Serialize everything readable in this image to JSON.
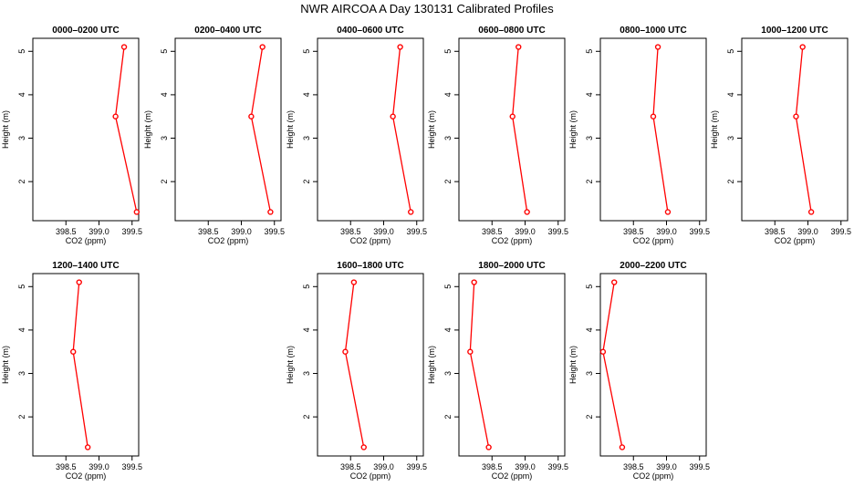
{
  "figure": {
    "title": "NWR AIRCOA A  Day 130131  Calibrated Profiles"
  },
  "colors": {
    "series": "#ff0000",
    "axes": "#000000",
    "background": "#ffffff"
  },
  "chart_data": [
    {
      "type": "line",
      "title": "0000–0200 UTC",
      "xlabel": "CO2 (ppm)",
      "ylabel": "Height (m)",
      "xlim": [
        398.0,
        399.6
      ],
      "ylim": [
        1.1,
        5.3
      ],
      "xticks": [
        "398.5",
        "399.0",
        "399.5"
      ],
      "yticks": [
        "2",
        "3",
        "4",
        "5"
      ],
      "x": [
        399.38,
        399.25,
        399.57
      ],
      "y": [
        5.1,
        3.5,
        1.3
      ]
    },
    {
      "type": "line",
      "title": "0200–0400 UTC",
      "xlabel": "CO2 (ppm)",
      "ylabel": "Height (m)",
      "xlim": [
        398.0,
        399.6
      ],
      "ylim": [
        1.1,
        5.3
      ],
      "xticks": [
        "398.5",
        "399.0",
        "399.5"
      ],
      "yticks": [
        "2",
        "3",
        "4",
        "5"
      ],
      "x": [
        399.32,
        399.15,
        399.44
      ],
      "y": [
        5.1,
        3.5,
        1.3
      ]
    },
    {
      "type": "line",
      "title": "0400–0600 UTC",
      "xlabel": "CO2 (ppm)",
      "ylabel": "Height (m)",
      "xlim": [
        398.0,
        399.6
      ],
      "ylim": [
        1.1,
        5.3
      ],
      "xticks": [
        "398.5",
        "399.0",
        "399.5"
      ],
      "yticks": [
        "2",
        "3",
        "4",
        "5"
      ],
      "x": [
        399.25,
        399.14,
        399.41
      ],
      "y": [
        5.1,
        3.5,
        1.3
      ]
    },
    {
      "type": "line",
      "title": "0600–0800 UTC",
      "xlabel": "CO2 (ppm)",
      "ylabel": "Height (m)",
      "xlim": [
        398.0,
        399.6
      ],
      "ylim": [
        1.1,
        5.3
      ],
      "xticks": [
        "398.5",
        "399.0",
        "399.5"
      ],
      "yticks": [
        "2",
        "3",
        "4",
        "5"
      ],
      "x": [
        398.9,
        398.81,
        399.03
      ],
      "y": [
        5.1,
        3.5,
        1.3
      ]
    },
    {
      "type": "line",
      "title": "0800–1000 UTC",
      "xlabel": "CO2 (ppm)",
      "ylabel": "Height (m)",
      "xlim": [
        398.0,
        399.6
      ],
      "ylim": [
        1.1,
        5.3
      ],
      "xticks": [
        "398.5",
        "399.0",
        "399.5"
      ],
      "yticks": [
        "2",
        "3",
        "4",
        "5"
      ],
      "x": [
        398.87,
        398.8,
        399.02
      ],
      "y": [
        5.1,
        3.5,
        1.3
      ]
    },
    {
      "type": "line",
      "title": "1000–1200 UTC",
      "xlabel": "CO2 (ppm)",
      "ylabel": "Height (m)",
      "xlim": [
        398.0,
        399.6
      ],
      "ylim": [
        1.1,
        5.3
      ],
      "xticks": [
        "398.5",
        "399.0",
        "399.5"
      ],
      "yticks": [
        "2",
        "3",
        "4",
        "5"
      ],
      "x": [
        398.92,
        398.82,
        399.05
      ],
      "y": [
        5.1,
        3.5,
        1.3
      ]
    },
    {
      "type": "line",
      "title": "1200–1400 UTC",
      "xlabel": "CO2 (ppm)",
      "ylabel": "Height (m)",
      "xlim": [
        398.0,
        399.6
      ],
      "ylim": [
        1.1,
        5.3
      ],
      "xticks": [
        "398.5",
        "399.0",
        "399.5"
      ],
      "yticks": [
        "2",
        "3",
        "4",
        "5"
      ],
      "x": [
        398.7,
        398.61,
        398.83
      ],
      "y": [
        5.1,
        3.5,
        1.3
      ]
    },
    {
      "type": "line",
      "title": "1600–1800 UTC",
      "xlabel": "CO2 (ppm)",
      "ylabel": "Height (m)",
      "xlim": [
        398.0,
        399.6
      ],
      "ylim": [
        1.1,
        5.3
      ],
      "xticks": [
        "398.5",
        "399.0",
        "399.5"
      ],
      "yticks": [
        "2",
        "3",
        "4",
        "5"
      ],
      "x": [
        398.55,
        398.42,
        398.7
      ],
      "y": [
        5.1,
        3.5,
        1.3
      ]
    },
    {
      "type": "line",
      "title": "1800–2000 UTC",
      "xlabel": "CO2 (ppm)",
      "ylabel": "Height (m)",
      "xlim": [
        398.0,
        399.6
      ],
      "ylim": [
        1.1,
        5.3
      ],
      "xticks": [
        "398.5",
        "399.0",
        "399.5"
      ],
      "yticks": [
        "2",
        "3",
        "4",
        "5"
      ],
      "x": [
        398.23,
        398.17,
        398.45
      ],
      "y": [
        5.1,
        3.5,
        1.3
      ]
    },
    {
      "type": "line",
      "title": "2000–2200 UTC",
      "xlabel": "CO2 (ppm)",
      "ylabel": "Height (m)",
      "xlim": [
        398.0,
        399.6
      ],
      "ylim": [
        1.1,
        5.3
      ],
      "xticks": [
        "398.5",
        "399.0",
        "399.5"
      ],
      "yticks": [
        "2",
        "3",
        "4",
        "5"
      ],
      "x": [
        398.21,
        398.04,
        398.33
      ],
      "y": [
        5.1,
        3.5,
        1.3
      ]
    }
  ]
}
